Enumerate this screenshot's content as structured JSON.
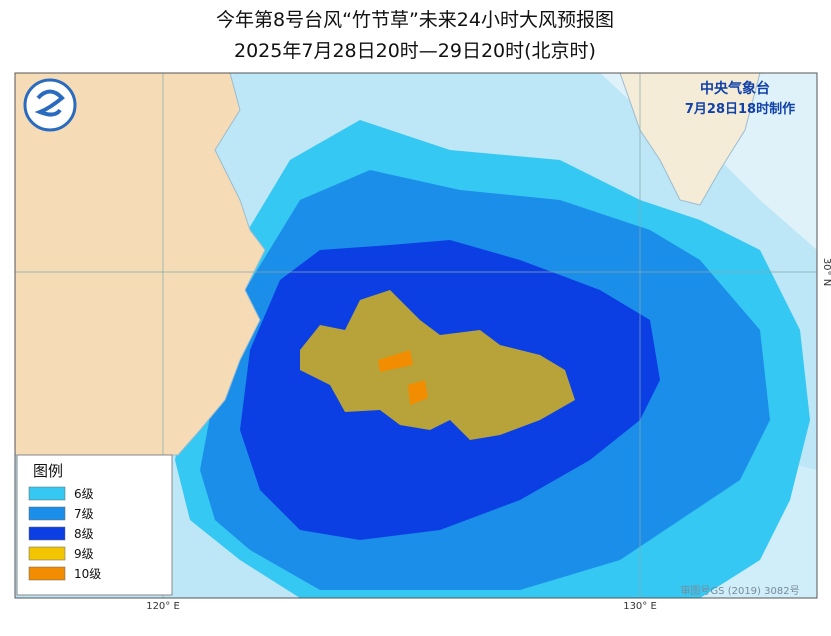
{
  "header": {
    "title": "今年第8号台风“竹节草”未来24小时大风预报图",
    "subtitle": "2025年7月28日20时—29日20时(北京时)"
  },
  "agency": {
    "name": "中央气象台",
    "issued": "7月28日18时制作"
  },
  "legend": {
    "title": "图例",
    "items": [
      {
        "label": "6级",
        "color": "#35c8f2"
      },
      {
        "label": "7级",
        "color": "#1b8ee9"
      },
      {
        "label": "8级",
        "color": "#0b3fe4"
      },
      {
        "label": "9级",
        "color": "#f2c500"
      },
      {
        "label": "10级",
        "color": "#f28c00"
      }
    ]
  },
  "axes": {
    "lon_labels": [
      "120° E",
      "130° E"
    ],
    "lat_labels": [
      "30° N"
    ]
  },
  "footer": {
    "approval": "审图号GS (2019) 3082号"
  }
}
